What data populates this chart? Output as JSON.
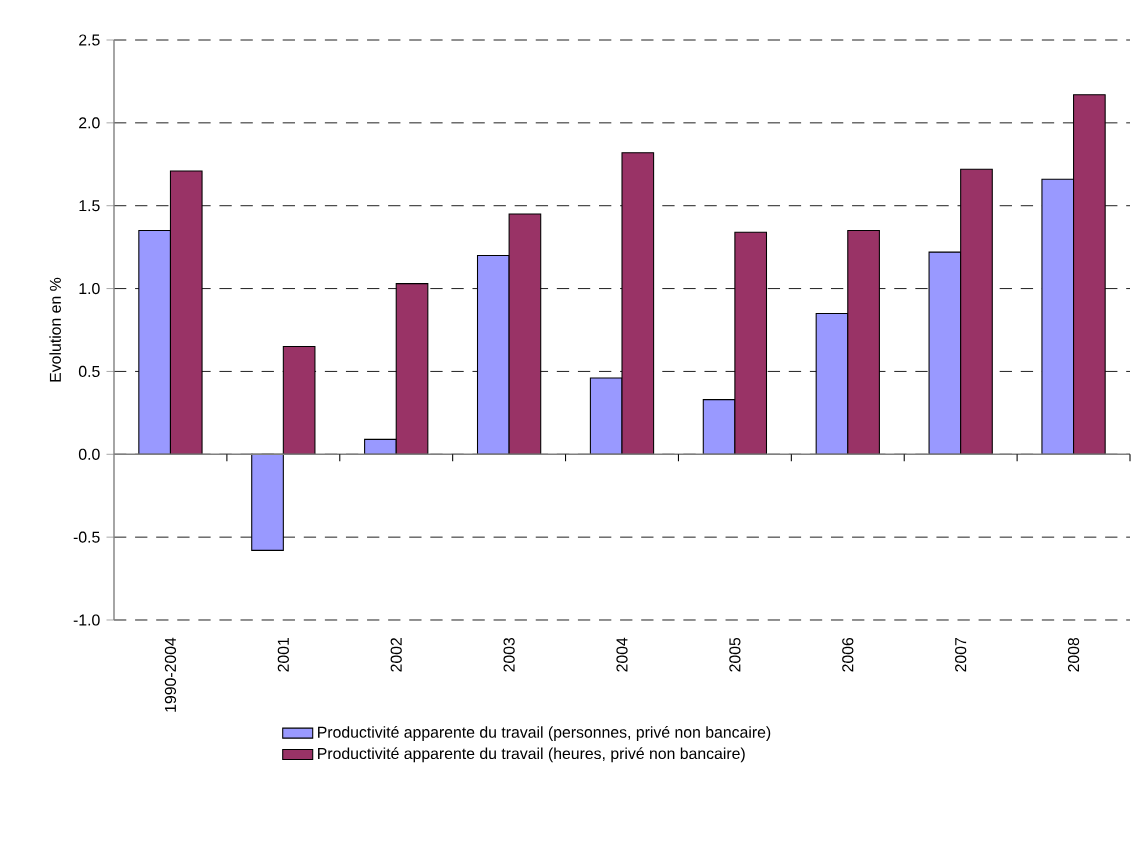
{
  "chart_data": {
    "type": "bar",
    "ylabel": "Evolution en %",
    "categories": [
      "1990-2004",
      "2001",
      "2002",
      "2003",
      "2004",
      "2005",
      "2006",
      "2007",
      "2008"
    ],
    "series": [
      {
        "name": "Productivité apparente du travail (personnes, privé non bancaire)",
        "color": "#9999ff",
        "values": [
          1.35,
          -0.58,
          0.09,
          1.2,
          0.46,
          0.33,
          0.85,
          1.22,
          1.66
        ]
      },
      {
        "name": "Productivité apparente du travail (heures, privé non bancaire)",
        "color": "#993366",
        "values": [
          1.71,
          0.65,
          1.03,
          1.45,
          1.82,
          1.34,
          1.35,
          1.72,
          2.17
        ]
      }
    ],
    "ylim": [
      -1.0,
      2.5
    ],
    "yticks": [
      {
        "value": -1.0,
        "label": "-1.0"
      },
      {
        "value": -0.5,
        "label": "-0.5"
      },
      {
        "value": 0,
        "label": "0.0"
      },
      {
        "value": 0.5,
        "label": "0.5"
      },
      {
        "value": 1.0,
        "label": "1.0"
      },
      {
        "value": 1.5,
        "label": "1.5"
      },
      {
        "value": 2.0,
        "label": "2.0"
      },
      {
        "value": 2.5,
        "label": "2.5"
      }
    ],
    "grid": "y",
    "legend": "bottom"
  }
}
